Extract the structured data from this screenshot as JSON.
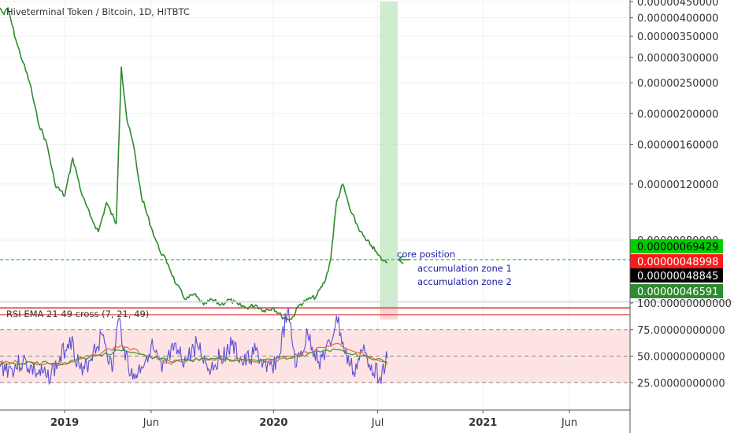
{
  "header": {
    "title": "Hiveterminal Token / Bitcoin, 1D, HITBTC"
  },
  "chart_data": [
    {
      "type": "line",
      "title": "Hiveterminal Token / Bitcoin, 1D, HITBTC",
      "xlabel": "",
      "ylabel": "",
      "x_ticks": [
        "2019",
        "Jun",
        "2020",
        "Jul",
        "2021",
        "Jun"
      ],
      "x_tick_dates": [
        "2019-01-01",
        "2019-06-01",
        "2020-01-01",
        "2020-07-01",
        "2021-01-01",
        "2021-06-01"
      ],
      "xlim": [
        "2018-09-10",
        "2021-09-15"
      ],
      "y_ticks": [
        "0.00000450000",
        "0.00000400000",
        "0.00000350000",
        "0.00000300000",
        "0.00000250000",
        "0.00000200000",
        "0.00000160000",
        "0.00000120000",
        "0.00000080000"
      ],
      "ylim": [
        4e-07,
        4.5e-06
      ],
      "y_scale": "log",
      "grid": true,
      "series": [
        {
          "color": "#2e8b2e",
          "x": [
            "2018-09-10",
            "2018-09-17",
            "2018-09-24",
            "2018-10-01",
            "2018-10-10",
            "2018-10-20",
            "2018-11-01",
            "2018-11-15",
            "2018-12-01",
            "2018-12-15",
            "2019-01-01",
            "2019-01-15",
            "2019-02-01",
            "2019-02-15",
            "2019-03-01",
            "2019-03-15",
            "2019-04-01",
            "2019-04-05",
            "2019-04-10",
            "2019-04-20",
            "2019-05-01",
            "2019-05-15",
            "2019-06-01",
            "2019-06-15",
            "2019-07-01",
            "2019-07-15",
            "2019-08-01",
            "2019-08-15",
            "2019-09-01",
            "2019-09-15",
            "2019-10-01",
            "2019-10-15",
            "2019-11-01",
            "2019-11-15",
            "2019-12-01",
            "2019-12-15",
            "2020-01-01",
            "2020-01-15",
            "2020-02-01",
            "2020-02-15",
            "2020-03-01",
            "2020-03-15",
            "2020-04-01",
            "2020-04-10",
            "2020-04-20",
            "2020-05-01",
            "2020-05-15",
            "2020-06-01",
            "2020-06-10",
            "2020-06-20",
            "2020-07-01",
            "2020-07-10",
            "2020-07-18"
          ],
          "y": [
            4.3e-06,
            4.1e-06,
            4.3e-06,
            3.8e-06,
            3.3e-06,
            2.9e-06,
            2.5e-06,
            1.9e-06,
            1.6e-06,
            1.2e-06,
            1.1e-06,
            1.45e-06,
            1.1e-06,
            9.5e-07,
            8.5e-07,
            1.05e-06,
            9e-07,
            1.5e-06,
            2.8e-06,
            1.9e-06,
            1.6e-06,
            1.1e-06,
            8.8e-07,
            7.5e-07,
            6.7e-07,
            5.8e-07,
            5.2e-07,
            5.4e-07,
            5e-07,
            5.2e-07,
            5e-07,
            5.2e-07,
            5e-07,
            4.9e-07,
            5e-07,
            4.8e-07,
            4.9e-07,
            4.6e-07,
            4.5e-07,
            5e-07,
            5.2e-07,
            5.3e-07,
            6e-07,
            7e-07,
            1.05e-06,
            1.2e-06,
            9.8e-07,
            8.5e-07,
            8e-07,
            7.7e-07,
            7.2e-07,
            6.9e-07,
            6.8e-07
          ]
        }
      ],
      "annotations": [
        {
          "text": "core position",
          "color": "#1a1aa0"
        },
        {
          "text": "accumulation zone 1",
          "color": "#1a1aa0"
        },
        {
          "text": "accumulation zone 2",
          "color": "#1a1aa0"
        }
      ],
      "levels": [
        {
          "value": 6.9429e-07,
          "label": "0.00000069429",
          "bg": "#00cc00",
          "fg": "#000000",
          "style": "dashed",
          "line_color": "#33cc33"
        },
        {
          "value": 4.8998e-07,
          "label": "0.00000048998",
          "bg": "#ff1a1a",
          "fg": "#ffffff",
          "style": "solid",
          "line_color": "#e8474a"
        },
        {
          "value": 4.8845e-07,
          "label": "0.00000048845",
          "bg": "#000000",
          "fg": "#ffffff",
          "style": "solid",
          "line_color": "#e8474a"
        },
        {
          "value": 4.6591e-07,
          "label": "0.00000046591",
          "bg": "#2e8b2e",
          "fg": "#ffffff",
          "style": "solid",
          "line_color": "#e8474a"
        }
      ],
      "highlight_zones": [
        {
          "color": "#bfe6bf",
          "x_from": "2020-07-05",
          "x_to": "2020-08-05",
          "y_from": 4.9e-07,
          "y_to": 4.5e-06
        },
        {
          "color": "#f8c4c4",
          "x_from": "2020-07-05",
          "x_to": "2020-08-05",
          "y_from": 4.5e-07,
          "y_to": 4.9e-07
        }
      ]
    },
    {
      "type": "line",
      "title": "RSI EMA 21 49 cross (7, 21, 49)",
      "y_ticks": [
        "100.00000000000",
        "75.00000000000",
        "50.00000000000",
        "25.00000000000"
      ],
      "ylim": [
        0,
        100
      ],
      "bands": [
        25,
        50,
        75
      ],
      "band_fill": "#fde3e3",
      "series": [
        {
          "color": "#5b4fd6",
          "x": [
            "2018-09-10",
            "2018-10-01",
            "2018-10-20",
            "2018-11-10",
            "2018-12-01",
            "2018-12-20",
            "2019-01-10",
            "2019-02-01",
            "2019-02-20",
            "2019-03-10",
            "2019-03-25",
            "2019-04-05",
            "2019-04-15",
            "2019-04-30",
            "2019-05-15",
            "2019-06-01",
            "2019-06-20",
            "2019-07-10",
            "2019-08-01",
            "2019-08-20",
            "2019-09-10",
            "2019-10-01",
            "2019-10-20",
            "2019-11-10",
            "2019-12-01",
            "2019-12-20",
            "2020-01-10",
            "2020-01-25",
            "2020-02-10",
            "2020-03-01",
            "2020-03-20",
            "2020-04-10",
            "2020-04-20",
            "2020-05-05",
            "2020-05-20",
            "2020-06-05",
            "2020-06-20",
            "2020-07-05",
            "2020-07-18"
          ],
          "y": [
            40,
            38,
            45,
            35,
            30,
            42,
            68,
            32,
            55,
            70,
            35,
            85,
            58,
            28,
            40,
            60,
            35,
            55,
            45,
            62,
            38,
            50,
            60,
            42,
            55,
            35,
            48,
            92,
            40,
            70,
            45,
            60,
            88,
            52,
            35,
            55,
            42,
            30,
            48
          ]
        },
        {
          "color": "#e06b3c",
          "x": [
            "2018-09-10",
            "2019-01-01",
            "2019-04-10",
            "2019-07-01",
            "2019-10-01",
            "2020-01-01",
            "2020-04-20",
            "2020-07-18"
          ],
          "y": [
            45,
            42,
            60,
            44,
            48,
            45,
            62,
            42
          ]
        },
        {
          "color": "#3a9a3a",
          "x": [
            "2018-09-10",
            "2019-01-01",
            "2019-04-10",
            "2019-07-01",
            "2019-10-01",
            "2020-01-01",
            "2020-04-20",
            "2020-07-18"
          ],
          "y": [
            42,
            44,
            55,
            46,
            47,
            47,
            56,
            44
          ]
        }
      ]
    }
  ]
}
